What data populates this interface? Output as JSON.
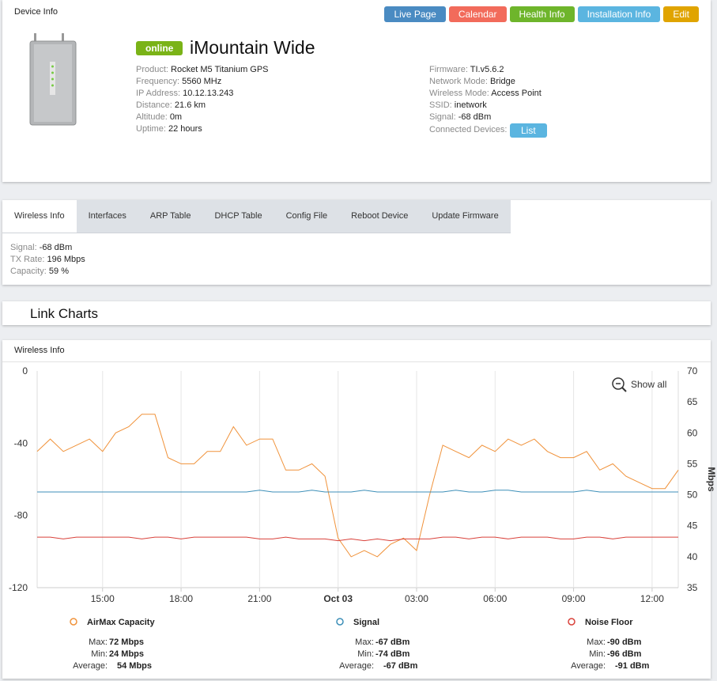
{
  "header": {
    "title": "Device Info",
    "buttons": [
      {
        "label": "Live Page",
        "color": "#4a8bc2"
      },
      {
        "label": "Calendar",
        "color": "#f26b5b"
      },
      {
        "label": "Health Info",
        "color": "#6eb52b"
      },
      {
        "label": "Installation Info",
        "color": "#5bb5e0"
      },
      {
        "label": "Edit",
        "color": "#e0a400"
      }
    ]
  },
  "device": {
    "status": "online",
    "name": "iMountain Wide",
    "left_fields": [
      {
        "label": "Product:",
        "value": "Rocket M5 Titanium GPS"
      },
      {
        "label": "Frequency:",
        "value": "5560 MHz"
      },
      {
        "label": "IP Address:",
        "value": "10.12.13.243"
      },
      {
        "label": "Distance:",
        "value": "21.6 km"
      },
      {
        "label": "Altitude:",
        "value": "0m"
      },
      {
        "label": "Uptime:",
        "value": "22 hours"
      }
    ],
    "right_fields": [
      {
        "label": "Firmware:",
        "value": "TI.v5.6.2"
      },
      {
        "label": "Network Mode:",
        "value": "Bridge"
      },
      {
        "label": "Wireless Mode:",
        "value": "Access Point"
      },
      {
        "label": "SSID:",
        "value": "inetwork"
      },
      {
        "label": "Signal:",
        "value": "-68 dBm"
      }
    ],
    "connected_label": "Connected Devices:",
    "connected_button": "List"
  },
  "tabs": {
    "items": [
      "Wireless Info",
      "Interfaces",
      "ARP Table",
      "DHCP Table",
      "Config File",
      "Reboot Device",
      "Update Firmware"
    ],
    "fields": [
      {
        "label": "Signal:",
        "value": "-68 dBm"
      },
      {
        "label": "TX Rate:",
        "value": "196 Mbps"
      },
      {
        "label": "Capacity:",
        "value": "59 %"
      }
    ]
  },
  "section_title": "Link Charts",
  "chart_data": {
    "type": "line",
    "title": "Wireless Info",
    "zoom_label": "Show all",
    "categories": [
      null,
      null,
      null,
      null,
      null,
      "15:00",
      null,
      null,
      null,
      null,
      null,
      "18:00",
      null,
      null,
      null,
      null,
      null,
      "21:00",
      null,
      null,
      null,
      null,
      null,
      "Oct 03",
      null,
      null,
      null,
      null,
      null,
      "03:00",
      null,
      null,
      null,
      null,
      null,
      "06:00",
      null,
      null,
      null,
      null,
      null,
      "09:00",
      null,
      null,
      null,
      null,
      null,
      "12:00",
      null,
      null
    ],
    "ylim": [
      -120,
      0
    ],
    "yticks": [
      0,
      -40,
      -80,
      -120
    ],
    "y2lim": [
      35,
      70
    ],
    "y2ticks": [
      35,
      40,
      45,
      50,
      55,
      60,
      65,
      70
    ],
    "y2_label": "Mbps",
    "x_grid": true,
    "series": [
      {
        "name": "AirMax Capacity",
        "color": "#f0923a",
        "axis": "y2",
        "values": [
          57,
          59,
          57,
          58,
          59,
          57,
          60,
          61,
          63,
          63,
          56,
          55,
          55,
          57,
          57,
          61,
          58,
          59,
          59,
          54,
          54,
          55,
          53,
          43,
          40,
          41,
          40,
          42,
          43,
          41,
          50,
          58,
          57,
          56,
          58,
          57,
          59,
          58,
          59,
          57,
          56,
          56,
          57,
          54,
          55,
          53,
          52,
          51,
          51,
          54
        ],
        "stats": [
          {
            "label": "Max:",
            "value": "72 Mbps"
          },
          {
            "label": "Min:",
            "value": "24 Mbps"
          },
          {
            "label": "Average:",
            "value": "54 Mbps"
          }
        ]
      },
      {
        "name": "Signal",
        "color": "#3d8fb8",
        "values": [
          -67,
          -67,
          -67,
          -67,
          -67,
          -67,
          -67,
          -67,
          -67,
          -67,
          -67,
          -67,
          -67,
          -67,
          -67,
          -67,
          -67,
          -66,
          -67,
          -67,
          -67,
          -66,
          -67,
          -67,
          -67,
          -66,
          -67,
          -67,
          -67,
          -67,
          -67,
          -67,
          -66,
          -67,
          -67,
          -66,
          -66,
          -67,
          -67,
          -67,
          -67,
          -67,
          -66,
          -67,
          -67,
          -67,
          -67,
          -67,
          -67,
          -67
        ],
        "stats": [
          {
            "label": "Max:",
            "value": "-67 dBm"
          },
          {
            "label": "Min:",
            "value": "-74 dBm"
          },
          {
            "label": "Average:",
            "value": "-67 dBm"
          }
        ]
      },
      {
        "name": "Noise Floor",
        "color": "#d9413a",
        "values": [
          -92,
          -92,
          -93,
          -92,
          -92,
          -92,
          -92,
          -92,
          -93,
          -92,
          -92,
          -93,
          -92,
          -92,
          -92,
          -92,
          -92,
          -93,
          -93,
          -92,
          -93,
          -93,
          -93,
          -94,
          -93,
          -94,
          -93,
          -94,
          -93,
          -93,
          -93,
          -92,
          -92,
          -93,
          -92,
          -92,
          -93,
          -92,
          -92,
          -92,
          -93,
          -93,
          -92,
          -92,
          -93,
          -92,
          -92,
          -92,
          -92,
          -92
        ],
        "stats": [
          {
            "label": "Max:",
            "value": "-90 dBm"
          },
          {
            "label": "Min:",
            "value": "-96 dBm"
          },
          {
            "label": "Average:",
            "value": "-91 dBm"
          }
        ]
      }
    ]
  }
}
